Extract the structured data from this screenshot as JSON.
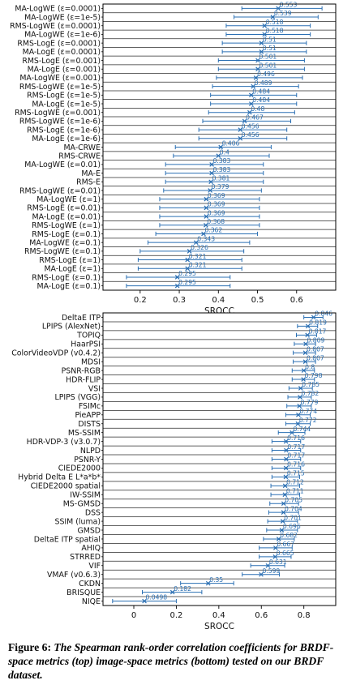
{
  "chart_data": [
    {
      "type": "scatter",
      "xlabel": "SROCC",
      "xlim": [
        0.105,
        0.7
      ],
      "xticks": [
        0.2,
        0.3,
        0.4,
        0.5,
        0.6
      ],
      "grid": true,
      "marker_color": "#2a6fb3",
      "categories": [
        "MA-LogWE (ε=0.0001)",
        "MA-LogWE (ε=1e-5)",
        "RMS-LogWE (ε=0.0001)",
        "MA-LogWE (ε=1e-6)",
        "RMS-LogE (ε=0.0001)",
        "MA-LogE (ε=0.0001)",
        "RMS-LogE (ε=0.001)",
        "MA-LogE (ε=0.001)",
        "MA-LogWE (ε=0.001)",
        "RMS-LogWE (ε=1e-5)",
        "RMS-LogE (ε=1e-5)",
        "MA-LogE (ε=1e-5)",
        "RMS-LogWE (ε=0.001)",
        "RMS-LogWE (ε=1e-6)",
        "RMS-LogE (ε=1e-6)",
        "MA-LogE (ε=1e-6)",
        "MA-CRWE",
        "RMS-CRWE",
        "MA-LogWE (ε=0.01)",
        "MA-E",
        "RMS-E",
        "RMS-LogWE (ε=0.01)",
        "MA-LogWE (ε=1)",
        "RMS-LogE (ε=0.01)",
        "MA-LogE (ε=0.01)",
        "RMS-LogWE (ε=1)",
        "RMS-LogE (ε=0.1)",
        "MA-LogWE (ε=0.1)",
        "RMS-LogWE (ε=0.1)",
        "RMS-LogE (ε=1)",
        "MA-LogE (ε=1)",
        "RMS-LogE (ε=0.1)",
        "MA-LogE (ε=0.1)"
      ],
      "values": [
        0.553,
        0.539,
        0.518,
        0.518,
        0.51,
        0.51,
        0.501,
        0.501,
        0.496,
        0.489,
        0.484,
        0.484,
        0.48,
        0.467,
        0.456,
        0.456,
        0.406,
        0.4,
        0.383,
        0.383,
        0.381,
        0.379,
        0.369,
        0.369,
        0.369,
        0.368,
        0.362,
        0.343,
        0.326,
        0.321,
        0.321,
        0.295,
        0.295
      ],
      "ci_low": [
        0.46,
        0.44,
        0.42,
        0.42,
        0.41,
        0.41,
        0.4,
        0.4,
        0.395,
        0.385,
        0.38,
        0.38,
        0.375,
        0.36,
        0.35,
        0.35,
        0.29,
        0.285,
        0.265,
        0.265,
        0.265,
        0.26,
        0.25,
        0.25,
        0.25,
        0.25,
        0.24,
        0.22,
        0.2,
        0.195,
        0.195,
        0.165,
        0.165
      ],
      "ci_high": [
        0.665,
        0.655,
        0.635,
        0.635,
        0.625,
        0.625,
        0.62,
        0.62,
        0.615,
        0.605,
        0.6,
        0.6,
        0.595,
        0.585,
        0.575,
        0.575,
        0.535,
        0.53,
        0.515,
        0.515,
        0.515,
        0.51,
        0.505,
        0.505,
        0.505,
        0.505,
        0.5,
        0.48,
        0.465,
        0.46,
        0.46,
        0.43,
        0.43
      ],
      "value_labels": [
        "0.553",
        "0.539",
        "0.518",
        "0.518",
        "0.51",
        "0.51",
        "0.501",
        "0.501",
        "0.496",
        "0.489",
        "0.484",
        "0.484",
        "0.48",
        "0.467",
        "0.456",
        "0.456",
        "0.406",
        "0.4",
        "0.383",
        "0.383",
        "0.381",
        "0.379",
        "0.369",
        "0.369",
        "0.369",
        "0.368",
        "0.362",
        "0.343",
        "0.326",
        "0.321",
        "0.321",
        "0.295",
        "0.295"
      ]
    },
    {
      "type": "scatter",
      "xlabel": "SROCC",
      "xlim": [
        -0.145,
        0.95
      ],
      "xticks": [
        0,
        0.2,
        0.4,
        0.6,
        0.8
      ],
      "grid": true,
      "marker_color": "#2a6fb3",
      "categories": [
        "DeltaE ITP",
        "LPIPS (AlexNet)",
        "TOPIQ",
        "HaarPSI",
        "ColorVideoVDP (v0.4.2)",
        "MDSI",
        "PSNR-RGB",
        "HDR-FLIP",
        "VSI",
        "LPIPS (VGG)",
        "FSIMc",
        "PieAPP",
        "DISTS",
        "MS-SSIM",
        "HDR-VDP-3 (v3.0.7)",
        "NLPD",
        "PSNR-Y",
        "CIEDE2000",
        "Hybrid Delta E L*a*b*",
        "CIEDE2000 spatial",
        "IW-SSIM",
        "MS-GMSD",
        "DSS",
        "SSIM (luma)",
        "GMSD",
        "DeltaE ITP spatial",
        "AHIQ",
        "STRRED",
        "VIF",
        "VMAF (v0.6.3)",
        "CKDN",
        "BRISQUE",
        "NIQE"
      ],
      "values": [
        0.846,
        0.819,
        0.817,
        0.809,
        0.807,
        0.807,
        0.8,
        0.798,
        0.785,
        0.782,
        0.779,
        0.774,
        0.772,
        0.744,
        0.716,
        0.717,
        0.717,
        0.716,
        0.715,
        0.712,
        0.711,
        0.705,
        0.704,
        0.701,
        0.696,
        0.682,
        0.667,
        0.665,
        0.631,
        0.599,
        0.35,
        0.182,
        0.0498
      ],
      "ci_low": [
        0.8,
        0.77,
        0.765,
        0.755,
        0.75,
        0.75,
        0.745,
        0.745,
        0.73,
        0.725,
        0.72,
        0.715,
        0.715,
        0.68,
        0.65,
        0.65,
        0.65,
        0.65,
        0.65,
        0.645,
        0.645,
        0.64,
        0.635,
        0.63,
        0.625,
        0.61,
        0.59,
        0.59,
        0.55,
        0.51,
        0.22,
        0.04,
        -0.1
      ],
      "ci_high": [
        0.89,
        0.865,
        0.86,
        0.855,
        0.855,
        0.855,
        0.85,
        0.85,
        0.84,
        0.835,
        0.835,
        0.83,
        0.83,
        0.805,
        0.785,
        0.785,
        0.785,
        0.785,
        0.78,
        0.78,
        0.78,
        0.775,
        0.775,
        0.77,
        0.77,
        0.755,
        0.745,
        0.74,
        0.71,
        0.685,
        0.47,
        0.32,
        0.2
      ],
      "value_labels": [
        "0.846",
        "0.819",
        "0.817",
        "0.809",
        "0.807",
        "0.807",
        "0.8",
        "0.798",
        "0.785",
        "0.782",
        "0.779",
        "0.774",
        "0.772",
        "0.744",
        "0.716",
        "0.717",
        "0.717",
        "0.716",
        "0.715",
        "0.712",
        "0.711",
        "0.705",
        "0.704",
        "0.701",
        "0.696",
        "0.682",
        "0.667",
        "0.665",
        "0.631",
        "0.599",
        "0.35",
        "0.182",
        "0.0498"
      ]
    }
  ],
  "caption": {
    "figure_number": "Figure 6:",
    "text": "The Spearman rank-order correlation coefficients for BRDF-space metrics (top) image-space metrics (bottom) tested on our BRDF dataset."
  }
}
